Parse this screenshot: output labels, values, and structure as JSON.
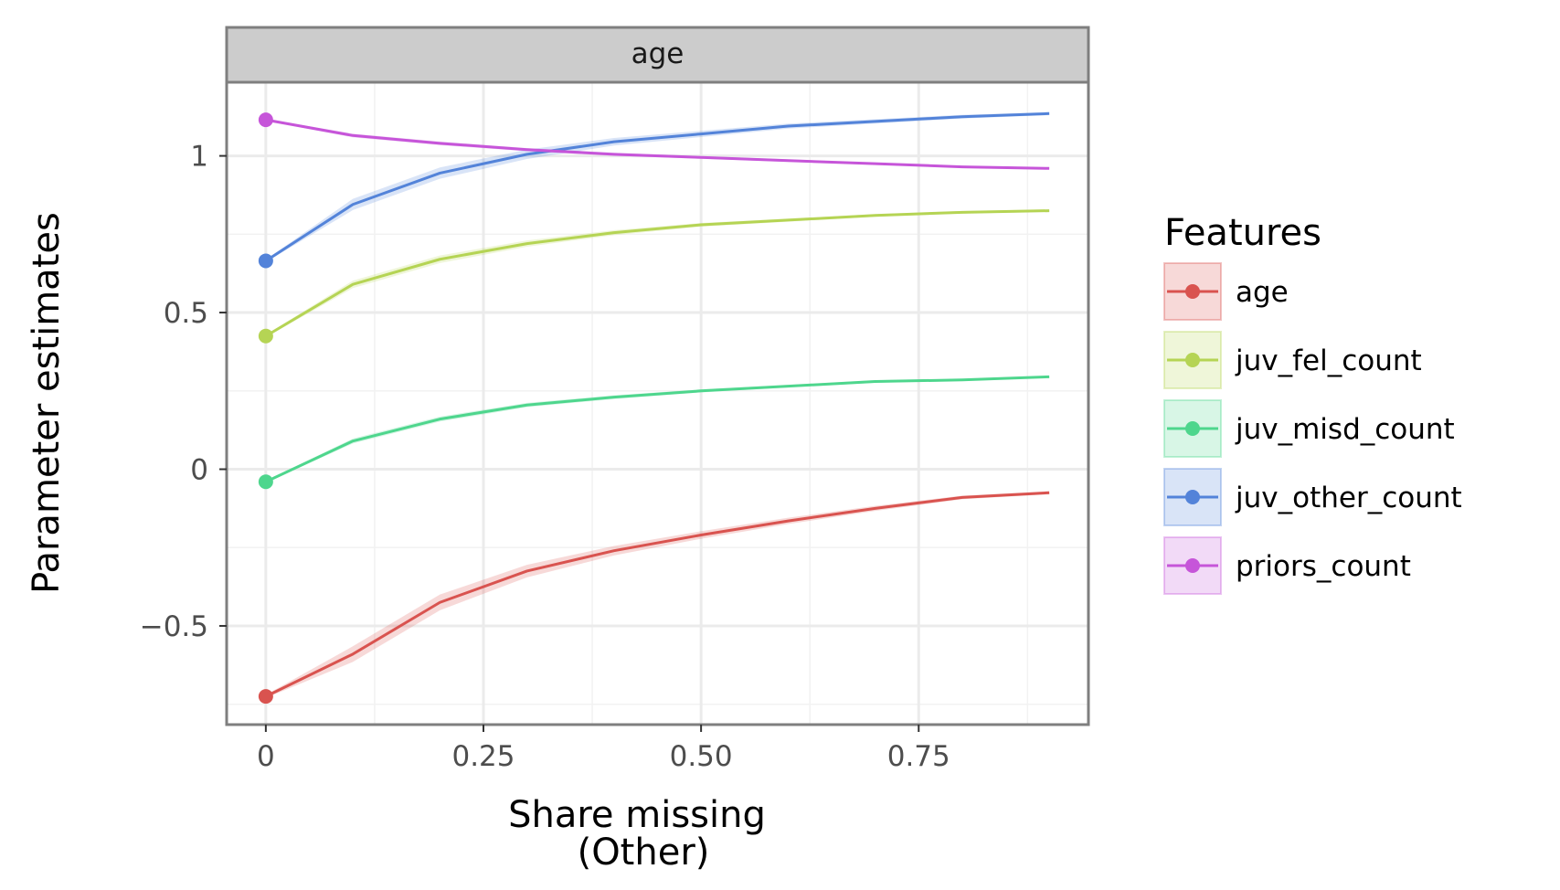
{
  "chart_data": {
    "type": "line",
    "facet_label": "age",
    "xlabel": [
      "Share missing",
      "(Other)"
    ],
    "ylabel": "Parameter estimates",
    "xlim": [
      -0.045,
      0.945
    ],
    "ylim": [
      -0.815,
      1.235
    ],
    "x_ticks": [
      0,
      0.25,
      0.5,
      0.75
    ],
    "x_tick_labels": [
      "0",
      "0.25",
      "0.50",
      "0.75"
    ],
    "y_ticks": [
      -0.5,
      0,
      0.5,
      1
    ],
    "y_tick_labels": [
      "−0.5",
      "0",
      "0.5",
      "1"
    ],
    "grid": true,
    "legend_title": "Features",
    "legend_position": "right",
    "x": [
      0,
      0.1,
      0.2,
      0.3,
      0.4,
      0.5,
      0.6,
      0.7,
      0.8,
      0.9
    ],
    "series": [
      {
        "name": "age",
        "color": "#d9534f",
        "values": [
          -0.725,
          -0.59,
          -0.425,
          -0.325,
          -0.26,
          -0.21,
          -0.165,
          -0.125,
          -0.09,
          -0.075
        ],
        "band": [
          0.005,
          0.025,
          0.025,
          0.02,
          0.015,
          0.012,
          0.01,
          0.008,
          0.006,
          0.005
        ]
      },
      {
        "name": "juv_fel_count",
        "color": "#b5d454",
        "values": [
          0.425,
          0.59,
          0.67,
          0.72,
          0.755,
          0.78,
          0.795,
          0.81,
          0.82,
          0.825
        ],
        "band": [
          0.004,
          0.012,
          0.012,
          0.01,
          0.008,
          0.006,
          0.005,
          0.004,
          0.004,
          0.004
        ]
      },
      {
        "name": "juv_misd_count",
        "color": "#4ed68d",
        "values": [
          -0.04,
          0.09,
          0.16,
          0.205,
          0.23,
          0.25,
          0.265,
          0.28,
          0.285,
          0.295
        ],
        "band": [
          0.003,
          0.008,
          0.008,
          0.007,
          0.006,
          0.005,
          0.004,
          0.004,
          0.003,
          0.003
        ]
      },
      {
        "name": "juv_other_count",
        "color": "#5383d9",
        "values": [
          0.665,
          0.845,
          0.945,
          1.005,
          1.045,
          1.07,
          1.095,
          1.11,
          1.125,
          1.135
        ],
        "band": [
          0.004,
          0.018,
          0.018,
          0.015,
          0.012,
          0.01,
          0.008,
          0.007,
          0.006,
          0.005
        ]
      },
      {
        "name": "priors_count",
        "color": "#c655d9",
        "values": [
          1.115,
          1.065,
          1.04,
          1.02,
          1.005,
          0.995,
          0.985,
          0.975,
          0.965,
          0.96
        ],
        "band": [
          0.003,
          0.006,
          0.006,
          0.005,
          0.005,
          0.004,
          0.004,
          0.003,
          0.003,
          0.003
        ]
      }
    ]
  }
}
